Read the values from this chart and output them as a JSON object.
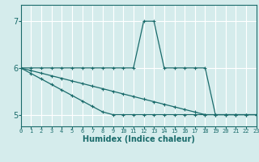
{
  "xlabel": "Humidex (Indice chaleur)",
  "ylabel": "",
  "bg_color": "#d5ecec",
  "grid_color": "#ffffff",
  "line_color": "#1a6b6b",
  "x_ticks": [
    0,
    1,
    2,
    3,
    4,
    5,
    6,
    7,
    8,
    9,
    10,
    11,
    12,
    13,
    14,
    15,
    16,
    17,
    18,
    19,
    20,
    21,
    22,
    23
  ],
  "y_ticks": [
    5,
    6,
    7
  ],
  "xlim": [
    0,
    23
  ],
  "ylim": [
    4.75,
    7.35
  ],
  "series": [
    {
      "x": [
        0,
        1,
        2,
        3,
        4,
        5,
        6,
        7,
        8,
        9,
        10,
        11,
        12,
        13,
        14,
        15,
        16,
        17,
        18,
        19,
        20,
        21,
        22,
        23
      ],
      "y": [
        6,
        6,
        6,
        6,
        6,
        6,
        6,
        6,
        6,
        6,
        6,
        6,
        7,
        7,
        6,
        6,
        6,
        6,
        6,
        5,
        5,
        5,
        5,
        5
      ]
    },
    {
      "x": [
        0,
        1,
        2,
        3,
        4,
        5,
        6,
        7,
        8,
        9,
        10,
        11,
        12,
        13,
        14,
        15,
        16,
        17,
        18,
        19,
        20,
        21,
        22,
        23
      ],
      "y": [
        6.0,
        5.944,
        5.889,
        5.833,
        5.778,
        5.722,
        5.667,
        5.611,
        5.556,
        5.5,
        5.444,
        5.389,
        5.333,
        5.278,
        5.222,
        5.167,
        5.111,
        5.056,
        5.0,
        5.0,
        5.0,
        5.0,
        5.0,
        5.0
      ]
    },
    {
      "x": [
        0,
        1,
        2,
        3,
        4,
        5,
        6,
        7,
        8,
        9,
        10,
        11,
        12,
        13,
        14,
        15,
        16,
        17,
        18,
        19,
        20,
        21,
        22,
        23
      ],
      "y": [
        6.0,
        5.882,
        5.765,
        5.647,
        5.529,
        5.412,
        5.294,
        5.176,
        5.059,
        5.0,
        5.0,
        5.0,
        5.0,
        5.0,
        5.0,
        5.0,
        5.0,
        5.0,
        5.0,
        5.0,
        5.0,
        5.0,
        5.0,
        5.0
      ]
    }
  ]
}
